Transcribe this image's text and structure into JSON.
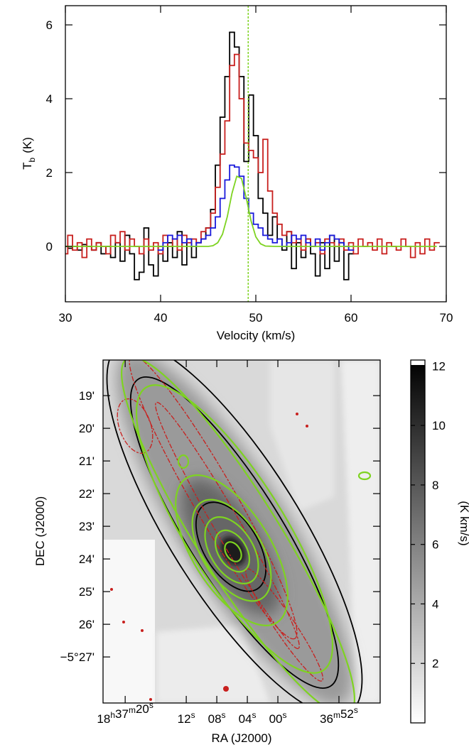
{
  "chart_data": [
    {
      "type": "spectrum",
      "xlabel": "Velocity (km/s)",
      "ylabel": "T",
      "ylabel_sub": "b",
      "ylabel_unit": "(K)",
      "xlim": [
        30,
        70
      ],
      "xticks": [
        30,
        40,
        50,
        60,
        70
      ],
      "ylim": [
        -1.5,
        6.52
      ],
      "yticks": [
        0,
        2,
        4,
        6
      ],
      "vline": 49.2,
      "vline_color": "#7ed321",
      "series": [
        {
          "color": "#000000",
          "step": true,
          "x": [
            30,
            30.5,
            31,
            31.5,
            32,
            32.5,
            33,
            33.5,
            34,
            34.5,
            35,
            35.5,
            36,
            36.5,
            37,
            37.5,
            38,
            38.5,
            39,
            39.5,
            40,
            40.5,
            41,
            41.5,
            42,
            42.5,
            43,
            43.5,
            44,
            44.5,
            45,
            45.5,
            46,
            46.5,
            47,
            47.5,
            48,
            48.5,
            49,
            49.5,
            50,
            50.5,
            51,
            51.5,
            52,
            52.5,
            53,
            53.5,
            54,
            54.5,
            55,
            55.5,
            56,
            56.5,
            57,
            57.5,
            58,
            58.5,
            59,
            59.5,
            60
          ],
          "values": [
            0,
            -0.05,
            0,
            -0.1,
            0.05,
            0,
            -0.1,
            0.1,
            -0.2,
            0,
            -0.3,
            0.1,
            -0.4,
            0.3,
            -0.2,
            -0.9,
            -0.7,
            0.5,
            -0.5,
            -0.8,
            0,
            -0.4,
            0.1,
            -0.3,
            0.4,
            -0.5,
            0.2,
            -0.3,
            0.1,
            0.2,
            0.5,
            1.0,
            2.2,
            3.5,
            4.6,
            5.8,
            5.4,
            4.6,
            2.3,
            4.1,
            3.0,
            1.3,
            0.9,
            0.3,
            0.8,
            0.2,
            -0.1,
            0.4,
            -0.6,
            0.1,
            -0.3,
            0.2,
            -0.2,
            -0.8,
            0.1,
            -0.6,
            0.3,
            -0.4,
            0.1,
            -0.9,
            -0.2
          ]
        },
        {
          "color": "#c8201e",
          "step": true,
          "x": [
            30,
            30.5,
            31,
            31.5,
            32,
            32.5,
            33,
            33.5,
            34,
            34.5,
            35,
            35.5,
            36,
            36.5,
            37,
            37.5,
            38,
            38.5,
            39,
            39.5,
            40,
            40.5,
            41,
            41.5,
            42,
            42.5,
            43,
            43.5,
            44,
            44.5,
            45,
            45.5,
            46,
            46.5,
            47,
            47.5,
            48,
            48.5,
            49,
            49.5,
            50,
            50.5,
            51,
            51.5,
            52,
            52.5,
            53,
            53.5,
            54,
            54.5,
            55,
            55.5,
            56,
            56.5,
            57,
            57.5,
            58,
            58.5,
            59,
            59.5,
            60,
            60.5,
            61,
            61.5,
            62,
            62.5,
            63,
            63.5,
            64,
            64.5,
            65,
            65.5,
            66,
            66.5,
            67,
            67.5,
            68,
            68.5,
            69
          ],
          "values": [
            -0.2,
            0.3,
            -0.1,
            0.1,
            -0.3,
            0.2,
            -0.1,
            0.1,
            0,
            -0.2,
            0.3,
            0.1,
            0.4,
            -0.1,
            0.2,
            0,
            -0.2,
            0.2,
            -0.1,
            0.1,
            -0.2,
            0.3,
            0,
            0.2,
            -0.1,
            0.3,
            0.1,
            0.2,
            0.1,
            0.4,
            0.5,
            0.9,
            1.6,
            2.5,
            3.4,
            4.9,
            5.2,
            4.0,
            2.8,
            2.6,
            2.4,
            2.0,
            2.9,
            1.5,
            0.9,
            0.6,
            0.3,
            0.4,
            0.1,
            0.2,
            -0.1,
            0.2,
            0,
            0.1,
            -0.2,
            0.2,
            0.1,
            0,
            0.2,
            -0.1,
            0.1,
            -0.2,
            0.2,
            0,
            0.1,
            -0.1,
            0.2,
            -0.2,
            0.1,
            0,
            -0.1,
            0.2,
            0,
            -0.3,
            0.1,
            -0.2,
            0.2,
            -0.1,
            0.1
          ]
        },
        {
          "color": "#1a1adb",
          "step": true,
          "x": [
            40,
            40.5,
            41,
            41.5,
            42,
            42.5,
            43,
            43.5,
            44,
            44.5,
            45,
            45.5,
            46,
            46.5,
            47,
            47.5,
            48,
            48.5,
            49,
            49.5,
            50,
            50.5,
            51,
            51.5,
            52,
            52.5,
            53,
            53.5,
            54,
            54.5,
            55,
            55.5,
            56,
            56.5,
            57,
            57.5,
            58,
            58.5,
            59,
            59.5,
            60
          ],
          "values": [
            -0.1,
            0.1,
            0.3,
            0.2,
            0.3,
            0.1,
            0.2,
            0,
            0.1,
            0.2,
            0.3,
            0.5,
            0.8,
            1.3,
            1.8,
            2.2,
            2.15,
            1.9,
            1.3,
            0.9,
            0.6,
            0.5,
            0.3,
            0.2,
            0.1,
            0.2,
            0,
            0.1,
            0.3,
            0.2,
            0.3,
            0.1,
            0,
            0.2,
            -0.1,
            0.1,
            0.3,
            0.2,
            0.1,
            0,
            -0.1
          ]
        },
        {
          "color": "#7ed321",
          "step": false,
          "x": [
            30,
            40,
            44,
            45,
            45.5,
            46,
            46.5,
            47,
            47.5,
            48,
            48.5,
            49,
            49.5,
            50,
            50.5,
            51,
            52,
            53,
            60,
            69
          ],
          "values": [
            0,
            0,
            0,
            0,
            0.02,
            0.1,
            0.33,
            0.8,
            1.44,
            1.9,
            1.84,
            1.31,
            0.69,
            0.26,
            0.07,
            0.01,
            0,
            0,
            0,
            0
          ]
        }
      ]
    },
    {
      "type": "map",
      "xlabel": "RA (J2000)",
      "ylabel": "DEC (J2000)",
      "xlim": [
        82.9,
        46.6
      ],
      "xticks": [
        {
          "value": 80,
          "label": "18h37m20s"
        },
        {
          "value": 72,
          "label": "12s"
        },
        {
          "value": 68,
          "label": "08s"
        },
        {
          "value": 64,
          "label": "04s"
        },
        {
          "value": 60,
          "label": "00s"
        },
        {
          "value": 52,
          "label": "36m52s"
        }
      ],
      "ylim": [
        28.41,
        17.91
      ],
      "yticks": [
        {
          "value": 19,
          "label": "19'"
        },
        {
          "value": 20,
          "label": "20'"
        },
        {
          "value": 21,
          "label": "21'"
        },
        {
          "value": 22,
          "label": "22'"
        },
        {
          "value": 23,
          "label": "23'"
        },
        {
          "value": 24,
          "label": "24'"
        },
        {
          "value": 25,
          "label": "25'"
        },
        {
          "value": 26,
          "label": "26'"
        },
        {
          "value": 27,
          "label": "−5°27'"
        }
      ],
      "colorbar": {
        "label": "(K km/s)",
        "lim": [
          0,
          12.2
        ],
        "ticks": [
          2,
          4,
          6,
          8,
          10,
          12
        ]
      }
    }
  ]
}
